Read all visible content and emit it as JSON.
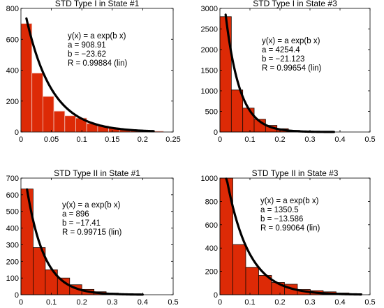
{
  "figure": {
    "background": "#ffffff"
  },
  "style": {
    "bar_fill": "#dd2a06",
    "bar_edge_dark": "#1a0a04",
    "bar_edge_light": "#f0c8c0",
    "fit_color": "#000000",
    "axis_color": "#000000",
    "text_color": "#000000"
  },
  "chart_data": [
    {
      "type": "bar",
      "title": "STD Type I in State #1",
      "xlabel": "",
      "ylabel": "",
      "xlim": [
        0,
        0.25
      ],
      "ylim": [
        0,
        800
      ],
      "xticks": [
        "0",
        "0.05",
        "0.1",
        "0.15",
        "0.2",
        "0.25"
      ],
      "yticks": [
        "0",
        "200",
        "400",
        "600",
        "800"
      ],
      "grid": false,
      "bar_edge": "light",
      "bins": [
        {
          "x0": 0.0,
          "x1": 0.018,
          "value": 702
        },
        {
          "x0": 0.018,
          "x1": 0.036,
          "value": 381
        },
        {
          "x0": 0.036,
          "x1": 0.054,
          "value": 230
        },
        {
          "x0": 0.054,
          "x1": 0.072,
          "value": 135
        },
        {
          "x0": 0.072,
          "x1": 0.09,
          "value": 105
        },
        {
          "x0": 0.09,
          "x1": 0.108,
          "value": 90
        },
        {
          "x0": 0.108,
          "x1": 0.126,
          "value": 55
        },
        {
          "x0": 0.126,
          "x1": 0.144,
          "value": 40
        },
        {
          "x0": 0.144,
          "x1": 0.162,
          "value": 28
        },
        {
          "x0": 0.162,
          "x1": 0.18,
          "value": 18
        },
        {
          "x0": 0.18,
          "x1": 0.198,
          "value": 12
        },
        {
          "x0": 0.198,
          "x1": 0.216,
          "value": 8
        },
        {
          "x0": 0.216,
          "x1": 0.234,
          "value": 5
        }
      ],
      "fit": {
        "model": "exp",
        "a": 908.91,
        "b": -23.62,
        "x_range": [
          0.009,
          0.218
        ]
      },
      "annotation_lines": [
        "y(x) = a exp(b x)",
        "a = 908.91",
        "b = −23.62",
        "R = 0.99884  (lin)"
      ]
    },
    {
      "type": "bar",
      "title": "STD Type I in State #3",
      "xlabel": "",
      "ylabel": "",
      "xlim": [
        0,
        0.5
      ],
      "ylim": [
        0,
        3000
      ],
      "xticks": [
        "0",
        "0.1",
        "0.2",
        "0.3",
        "0.4",
        "0.5"
      ],
      "yticks": [
        "0",
        "500",
        "1000",
        "1500",
        "2000",
        "2500",
        "3000"
      ],
      "grid": false,
      "bar_edge": "dark",
      "bins": [
        {
          "x0": 0.0,
          "x1": 0.038,
          "value": 2800
        },
        {
          "x0": 0.038,
          "x1": 0.076,
          "value": 1020
        },
        {
          "x0": 0.076,
          "x1": 0.114,
          "value": 580
        },
        {
          "x0": 0.114,
          "x1": 0.152,
          "value": 310
        },
        {
          "x0": 0.152,
          "x1": 0.19,
          "value": 160
        },
        {
          "x0": 0.19,
          "x1": 0.228,
          "value": 80
        },
        {
          "x0": 0.228,
          "x1": 0.266,
          "value": 40
        },
        {
          "x0": 0.266,
          "x1": 0.304,
          "value": 20
        },
        {
          "x0": 0.304,
          "x1": 0.342,
          "value": 10
        },
        {
          "x0": 0.342,
          "x1": 0.38,
          "value": 5
        }
      ],
      "fit": {
        "model": "exp",
        "a": 4254.4,
        "b": -21.123,
        "x_range": [
          0.019,
          0.38
        ]
      },
      "annotation_lines": [
        "y(x) = a exp(b x)",
        "a = 4254.4",
        "b = −21.123",
        "R = 0.99654  (lin)"
      ]
    },
    {
      "type": "bar",
      "title": "STD Type II in State #1",
      "xlabel": "",
      "ylabel": "",
      "xlim": [
        0,
        0.5
      ],
      "ylim": [
        0,
        700
      ],
      "xticks": [
        "0",
        "0.1",
        "0.2",
        "0.3",
        "0.4",
        "0.5"
      ],
      "yticks": [
        "0",
        "100",
        "200",
        "300",
        "400",
        "500",
        "600",
        "700"
      ],
      "grid": false,
      "bar_edge": "dark",
      "bins": [
        {
          "x0": 0.0,
          "x1": 0.04,
          "value": 635
        },
        {
          "x0": 0.04,
          "x1": 0.08,
          "value": 283
        },
        {
          "x0": 0.08,
          "x1": 0.12,
          "value": 150
        },
        {
          "x0": 0.12,
          "x1": 0.16,
          "value": 100
        },
        {
          "x0": 0.16,
          "x1": 0.2,
          "value": 60
        },
        {
          "x0": 0.2,
          "x1": 0.24,
          "value": 32
        },
        {
          "x0": 0.24,
          "x1": 0.28,
          "value": 18
        },
        {
          "x0": 0.28,
          "x1": 0.32,
          "value": 10
        },
        {
          "x0": 0.32,
          "x1": 0.36,
          "value": 6
        },
        {
          "x0": 0.36,
          "x1": 0.4,
          "value": 3
        }
      ],
      "fit": {
        "model": "exp",
        "a": 896,
        "b": -17.41,
        "x_range": [
          0.02,
          0.4
        ]
      },
      "annotation_lines": [
        "y(x) = a exp(b x)",
        "a = 896",
        "b = −17.41",
        "R = 0.99715  (lin)"
      ]
    },
    {
      "type": "bar",
      "title": "STD Type II in State #3",
      "xlabel": "",
      "ylabel": "",
      "xlim": [
        0,
        0.5
      ],
      "ylim": [
        0,
        1000
      ],
      "xticks": [
        "0",
        "0.1",
        "0.2",
        "0.3",
        "0.4",
        "0.5"
      ],
      "yticks": [
        "0",
        "200",
        "400",
        "600",
        "800",
        "1000"
      ],
      "grid": false,
      "bar_edge": "dark",
      "bins": [
        {
          "x0": 0.0,
          "x1": 0.043,
          "value": 1000
        },
        {
          "x0": 0.043,
          "x1": 0.086,
          "value": 430
        },
        {
          "x0": 0.086,
          "x1": 0.129,
          "value": 235
        },
        {
          "x0": 0.129,
          "x1": 0.172,
          "value": 165
        },
        {
          "x0": 0.172,
          "x1": 0.215,
          "value": 105
        },
        {
          "x0": 0.215,
          "x1": 0.258,
          "value": 90
        },
        {
          "x0": 0.258,
          "x1": 0.301,
          "value": 45
        },
        {
          "x0": 0.301,
          "x1": 0.344,
          "value": 35
        },
        {
          "x0": 0.344,
          "x1": 0.387,
          "value": 25
        },
        {
          "x0": 0.387,
          "x1": 0.43,
          "value": 15
        },
        {
          "x0": 0.43,
          "x1": 0.473,
          "value": 8
        }
      ],
      "fit": {
        "model": "exp",
        "a": 1350.5,
        "b": -13.586,
        "x_range": [
          0.021,
          0.47
        ]
      },
      "annotation_lines": [
        "y(x) = a exp(b x)",
        "a = 1350.5",
        "b = −13.586",
        "R = 0.99064  (lin)"
      ]
    }
  ]
}
